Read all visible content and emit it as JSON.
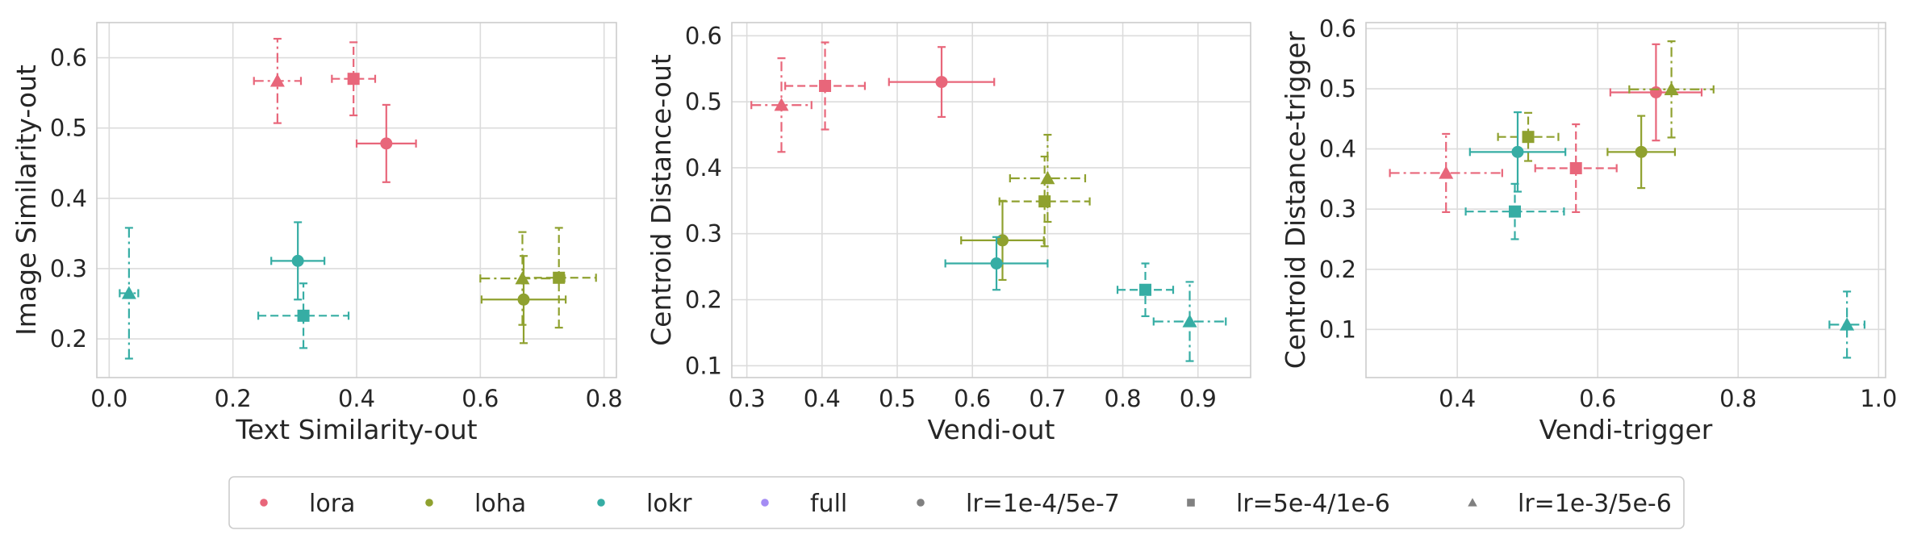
{
  "figure": {
    "markers": {
      "circle": "circle",
      "square": "square",
      "triangle": "triangle"
    },
    "legend": {
      "placement": "bottom-center",
      "entries": [
        {
          "label": "lora",
          "color": "#e8667a",
          "marker": "circle"
        },
        {
          "label": "loha",
          "color": "#8fa12f",
          "marker": "circle"
        },
        {
          "label": "lokr",
          "color": "#36ada4",
          "marker": "circle"
        },
        {
          "label": "full",
          "color": "#a48cf4",
          "marker": "circle"
        },
        {
          "label": "lr=1e-4/5e-7",
          "color": "#808080",
          "marker": "circle"
        },
        {
          "label": "lr=5e-4/1e-6",
          "color": "#808080",
          "marker": "square"
        },
        {
          "label": "lr=1e-3/5e-6",
          "color": "#808080",
          "marker": "triangle"
        }
      ]
    }
  },
  "chart_data": [
    {
      "type": "scatter",
      "title": "",
      "xlabel": "Text Similarity-out",
      "ylabel": "Image Similarity-out",
      "xlim": [
        -0.02,
        0.82
      ],
      "ylim": [
        0.145,
        0.65
      ],
      "xticks": [
        0.0,
        0.2,
        0.4,
        0.6,
        0.8
      ],
      "xtick_labels": [
        "0.0",
        "0.2",
        "0.4",
        "0.6",
        "0.8"
      ],
      "yticks": [
        0.2,
        0.3,
        0.4,
        0.5,
        0.6
      ],
      "ytick_labels": [
        "0.2",
        "0.3",
        "0.4",
        "0.5",
        "0.6"
      ],
      "grid": true,
      "points": [
        {
          "series": "lora",
          "lr": "lr=1e-4/5e-7",
          "marker": "circle",
          "color": "#e8667a",
          "x": 0.448,
          "y": 0.478,
          "xerr": 0.048,
          "yerr": 0.055
        },
        {
          "series": "lora",
          "lr": "lr=5e-4/1e-6",
          "marker": "square",
          "color": "#e8667a",
          "x": 0.395,
          "y": 0.57,
          "xerr": 0.035,
          "yerr": 0.052
        },
        {
          "series": "lora",
          "lr": "lr=1e-3/5e-6",
          "marker": "triangle",
          "color": "#e8667a",
          "x": 0.272,
          "y": 0.567,
          "xerr": 0.038,
          "yerr": 0.06
        },
        {
          "series": "loha",
          "lr": "lr=1e-4/5e-7",
          "marker": "circle",
          "color": "#8fa12f",
          "x": 0.67,
          "y": 0.256,
          "xerr": 0.068,
          "yerr": 0.062
        },
        {
          "series": "loha",
          "lr": "lr=5e-4/1e-6",
          "marker": "square",
          "color": "#8fa12f",
          "x": 0.727,
          "y": 0.287,
          "xerr": 0.06,
          "yerr": 0.071
        },
        {
          "series": "loha",
          "lr": "lr=1e-3/5e-6",
          "marker": "triangle",
          "color": "#8fa12f",
          "x": 0.668,
          "y": 0.286,
          "xerr": 0.068,
          "yerr": 0.066
        },
        {
          "series": "lokr",
          "lr": "lr=1e-4/5e-7",
          "marker": "circle",
          "color": "#36ada4",
          "x": 0.305,
          "y": 0.311,
          "xerr": 0.043,
          "yerr": 0.055
        },
        {
          "series": "lokr",
          "lr": "lr=5e-4/1e-6",
          "marker": "square",
          "color": "#36ada4",
          "x": 0.314,
          "y": 0.233,
          "xerr": 0.073,
          "yerr": 0.046
        },
        {
          "series": "lokr",
          "lr": "lr=1e-3/5e-6",
          "marker": "triangle",
          "color": "#36ada4",
          "x": 0.032,
          "y": 0.265,
          "xerr": 0.015,
          "yerr": 0.093
        }
      ]
    },
    {
      "type": "scatter",
      "title": "",
      "xlabel": "Vendi-out",
      "ylabel": "Centroid Distance-out",
      "xlim": [
        0.28,
        0.97
      ],
      "ylim": [
        0.082,
        0.62
      ],
      "xticks": [
        0.3,
        0.4,
        0.5,
        0.6,
        0.7,
        0.8,
        0.9
      ],
      "xtick_labels": [
        "0.3",
        "0.4",
        "0.5",
        "0.6",
        "0.7",
        "0.8",
        "0.9"
      ],
      "yticks": [
        0.1,
        0.2,
        0.3,
        0.4,
        0.5,
        0.6
      ],
      "ytick_labels": [
        "0.1",
        "0.2",
        "0.3",
        "0.4",
        "0.5",
        "0.6"
      ],
      "grid": true,
      "points": [
        {
          "series": "lora",
          "lr": "lr=1e-4/5e-7",
          "marker": "circle",
          "color": "#e8667a",
          "x": 0.559,
          "y": 0.53,
          "xerr": 0.07,
          "yerr": 0.053
        },
        {
          "series": "lora",
          "lr": "lr=5e-4/1e-6",
          "marker": "square",
          "color": "#e8667a",
          "x": 0.404,
          "y": 0.524,
          "xerr": 0.053,
          "yerr": 0.066
        },
        {
          "series": "lora",
          "lr": "lr=1e-3/5e-6",
          "marker": "triangle",
          "color": "#e8667a",
          "x": 0.346,
          "y": 0.495,
          "xerr": 0.04,
          "yerr": 0.071
        },
        {
          "series": "loha",
          "lr": "lr=1e-4/5e-7",
          "marker": "circle",
          "color": "#8fa12f",
          "x": 0.64,
          "y": 0.29,
          "xerr": 0.055,
          "yerr": 0.06
        },
        {
          "series": "loha",
          "lr": "lr=5e-4/1e-6",
          "marker": "square",
          "color": "#8fa12f",
          "x": 0.696,
          "y": 0.349,
          "xerr": 0.06,
          "yerr": 0.068
        },
        {
          "series": "loha",
          "lr": "lr=1e-3/5e-6",
          "marker": "triangle",
          "color": "#8fa12f",
          "x": 0.7,
          "y": 0.384,
          "xerr": 0.05,
          "yerr": 0.066
        },
        {
          "series": "lokr",
          "lr": "lr=1e-4/5e-7",
          "marker": "circle",
          "color": "#36ada4",
          "x": 0.632,
          "y": 0.255,
          "xerr": 0.068,
          "yerr": 0.04
        },
        {
          "series": "lokr",
          "lr": "lr=5e-4/1e-6",
          "marker": "square",
          "color": "#36ada4",
          "x": 0.83,
          "y": 0.215,
          "xerr": 0.037,
          "yerr": 0.04
        },
        {
          "series": "lokr",
          "lr": "lr=1e-3/5e-6",
          "marker": "triangle",
          "color": "#36ada4",
          "x": 0.889,
          "y": 0.167,
          "xerr": 0.048,
          "yerr": 0.06
        }
      ]
    },
    {
      "type": "scatter",
      "title": "",
      "xlabel": "Vendi-trigger",
      "ylabel": "Centroid Distance-trigger",
      "xlim": [
        0.27,
        1.01
      ],
      "ylim": [
        0.02,
        0.61
      ],
      "xticks": [
        0.4,
        0.6,
        0.8,
        1.0
      ],
      "xtick_labels": [
        "0.4",
        "0.6",
        "0.8",
        "1.0"
      ],
      "yticks": [
        0.1,
        0.2,
        0.3,
        0.4,
        0.5,
        0.6
      ],
      "ytick_labels": [
        "0.1",
        "0.2",
        "0.3",
        "0.4",
        "0.5",
        "0.6"
      ],
      "grid": true,
      "points": [
        {
          "series": "lora",
          "lr": "lr=1e-4/5e-7",
          "marker": "circle",
          "color": "#e8667a",
          "x": 0.683,
          "y": 0.494,
          "xerr": 0.065,
          "yerr": 0.08
        },
        {
          "series": "lora",
          "lr": "lr=5e-4/1e-6",
          "marker": "square",
          "color": "#e8667a",
          "x": 0.569,
          "y": 0.368,
          "xerr": 0.058,
          "yerr": 0.073
        },
        {
          "series": "lora",
          "lr": "lr=1e-3/5e-6",
          "marker": "triangle",
          "color": "#e8667a",
          "x": 0.384,
          "y": 0.36,
          "xerr": 0.08,
          "yerr": 0.065
        },
        {
          "series": "loha",
          "lr": "lr=1e-4/5e-7",
          "marker": "circle",
          "color": "#8fa12f",
          "x": 0.662,
          "y": 0.395,
          "xerr": 0.048,
          "yerr": 0.06
        },
        {
          "series": "loha",
          "lr": "lr=5e-4/1e-6",
          "marker": "square",
          "color": "#8fa12f",
          "x": 0.501,
          "y": 0.42,
          "xerr": 0.043,
          "yerr": 0.04
        },
        {
          "series": "loha",
          "lr": "lr=1e-3/5e-6",
          "marker": "triangle",
          "color": "#8fa12f",
          "x": 0.705,
          "y": 0.499,
          "xerr": 0.06,
          "yerr": 0.08
        },
        {
          "series": "lokr",
          "lr": "lr=1e-4/5e-7",
          "marker": "circle",
          "color": "#36ada4",
          "x": 0.486,
          "y": 0.395,
          "xerr": 0.068,
          "yerr": 0.066
        },
        {
          "series": "lokr",
          "lr": "lr=5e-4/1e-6",
          "marker": "square",
          "color": "#36ada4",
          "x": 0.482,
          "y": 0.296,
          "xerr": 0.07,
          "yerr": 0.046
        },
        {
          "series": "lokr",
          "lr": "lr=1e-3/5e-6",
          "marker": "triangle",
          "color": "#36ada4",
          "x": 0.955,
          "y": 0.108,
          "xerr": 0.025,
          "yerr": 0.055
        }
      ]
    }
  ]
}
